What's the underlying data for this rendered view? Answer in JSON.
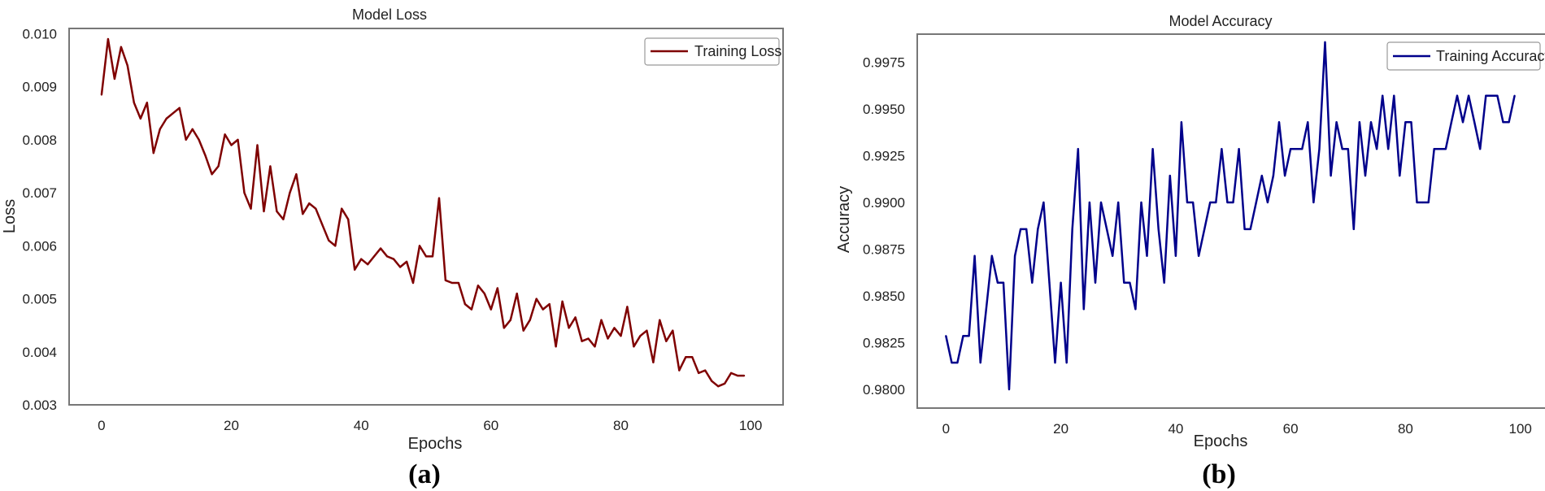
{
  "chart_data": [
    {
      "type": "line",
      "title": "Model Loss",
      "xlabel": "Epochs",
      "ylabel": "Loss",
      "xlim": [
        -5,
        105
      ],
      "ylim": [
        0.003,
        0.0101
      ],
      "x_ticks": [
        "0",
        "20",
        "40",
        "60",
        "80",
        "100"
      ],
      "y_ticks": [
        "0.003",
        "0.004",
        "0.005",
        "0.006",
        "0.007",
        "0.008",
        "0.009",
        "0.010"
      ],
      "grid": false,
      "legend_position": "top-right",
      "subfigure_label": "(a)",
      "series": [
        {
          "name": "Training Loss",
          "color": "#7f0000",
          "values": [
            0.00885,
            0.0099,
            0.00915,
            0.00975,
            0.0094,
            0.0087,
            0.0084,
            0.0087,
            0.00775,
            0.0082,
            0.0084,
            0.0085,
            0.0086,
            0.008,
            0.0082,
            0.008,
            0.0077,
            0.00735,
            0.0075,
            0.0081,
            0.0079,
            0.008,
            0.007,
            0.0067,
            0.0079,
            0.00665,
            0.0075,
            0.00665,
            0.0065,
            0.007,
            0.00735,
            0.0066,
            0.0068,
            0.0067,
            0.0064,
            0.0061,
            0.006,
            0.0067,
            0.0065,
            0.00555,
            0.00575,
            0.00565,
            0.0058,
            0.00595,
            0.0058,
            0.00575,
            0.0056,
            0.0057,
            0.0053,
            0.006,
            0.0058,
            0.0058,
            0.0069,
            0.00535,
            0.0053,
            0.0053,
            0.0049,
            0.0048,
            0.00525,
            0.0051,
            0.0048,
            0.0052,
            0.00445,
            0.0046,
            0.0051,
            0.0044,
            0.0046,
            0.005,
            0.0048,
            0.0049,
            0.0041,
            0.00495,
            0.00445,
            0.00465,
            0.0042,
            0.00425,
            0.0041,
            0.0046,
            0.00425,
            0.00445,
            0.0043,
            0.00485,
            0.0041,
            0.0043,
            0.0044,
            0.0038,
            0.0046,
            0.0042,
            0.0044,
            0.00365,
            0.0039,
            0.0039,
            0.0036,
            0.00365,
            0.00345,
            0.00335,
            0.0034,
            0.0036,
            0.00355,
            0.00355
          ]
        }
      ]
    },
    {
      "type": "line",
      "title": "Model Accuracy",
      "xlabel": "Epochs",
      "ylabel": "Accuracy",
      "xlim": [
        -5,
        105
      ],
      "ylim": [
        0.979,
        0.999
      ],
      "x_ticks": [
        "0",
        "20",
        "40",
        "60",
        "80",
        "100"
      ],
      "y_ticks": [
        "0.9800",
        "0.9825",
        "0.9850",
        "0.9875",
        "0.9900",
        "0.9925",
        "0.9950",
        "0.9975"
      ],
      "grid": false,
      "legend_position": "top-right",
      "subfigure_label": "(b)",
      "series": [
        {
          "name": "Training Accuracy",
          "color": "#00008b",
          "values": [
            0.98286,
            0.98143,
            0.98143,
            0.98286,
            0.98286,
            0.98714,
            0.98143,
            0.98429,
            0.98714,
            0.98571,
            0.98571,
            0.98,
            0.98714,
            0.98857,
            0.98857,
            0.98571,
            0.98857,
            0.99,
            0.98571,
            0.98143,
            0.98571,
            0.98143,
            0.98857,
            0.99286,
            0.98429,
            0.99,
            0.98571,
            0.99,
            0.98857,
            0.98714,
            0.99,
            0.98571,
            0.98571,
            0.98429,
            0.99,
            0.98714,
            0.99286,
            0.98857,
            0.98571,
            0.99143,
            0.98714,
            0.99429,
            0.99,
            0.99,
            0.98714,
            0.98857,
            0.99,
            0.99,
            0.99286,
            0.99,
            0.99,
            0.99286,
            0.98857,
            0.98857,
            0.99,
            0.99143,
            0.99,
            0.99143,
            0.99429,
            0.99143,
            0.99286,
            0.99286,
            0.99286,
            0.99429,
            0.99,
            0.99286,
            0.99857,
            0.99143,
            0.99429,
            0.99286,
            0.99286,
            0.98857,
            0.99429,
            0.99143,
            0.99429,
            0.99286,
            0.99571,
            0.99286,
            0.99571,
            0.99143,
            0.99429,
            0.99429,
            0.99,
            0.99,
            0.99,
            0.99286,
            0.99286,
            0.99286,
            0.99429,
            0.99571,
            0.99429,
            0.99571,
            0.99429,
            0.99286,
            0.99571,
            0.99571,
            0.99571,
            0.99429,
            0.99429,
            0.99571
          ]
        }
      ]
    }
  ]
}
